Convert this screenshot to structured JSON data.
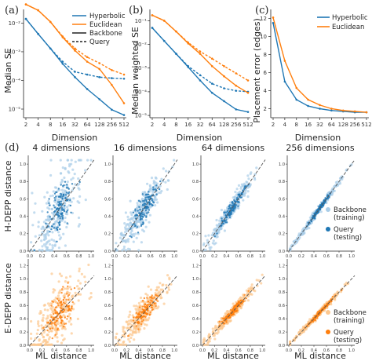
{
  "colors": {
    "hyperbolic": "#1f77b4",
    "euclidean": "#ff7f0e",
    "hyper_light": "#a9cde8",
    "euclid_light": "#fcc78f",
    "axis": "#222222",
    "diag": "#555555"
  },
  "panel_a": {
    "letter": "(a)",
    "ylabel": "Median SE",
    "xlabel": "Dimension",
    "xticks": [
      "2",
      "4",
      "8",
      "16",
      "32",
      "64",
      "128",
      "256",
      "512"
    ],
    "yticks": [
      "10⁻²",
      "10⁻³",
      "10⁻⁴",
      "10⁻⁵"
    ],
    "legend": {
      "hyperbolic": "Hyperbolic",
      "euclidean": "Euclidean",
      "backbone": "Backbone",
      "query": "Query"
    }
  },
  "panel_b": {
    "letter": "(b)",
    "ylabel": "Median weighted SE",
    "xlabel": "Dimension",
    "xticks": [
      "2",
      "4",
      "8",
      "16",
      "32",
      "64",
      "128",
      "256",
      "512"
    ],
    "yticks": [
      "10⁻¹",
      "10⁻²",
      "10⁻³",
      "10⁻⁴",
      "10⁻⁵"
    ]
  },
  "panel_c": {
    "letter": "(c)",
    "ylabel": "Placement error (edges)",
    "xlabel": "Dimension",
    "xticks": [
      "2",
      "4",
      "8",
      "16",
      "32",
      "64",
      "128",
      "256",
      "512"
    ],
    "yticks": [
      "2",
      "4",
      "6",
      "8",
      "10",
      "12"
    ],
    "legend": {
      "hyperbolic": "Hyperbolic",
      "euclidean": "Euclidean"
    }
  },
  "panel_d": {
    "letter": "(d)",
    "col_titles": [
      "4 dimensions",
      "16 dimensions",
      "64 dimensions",
      "256 dimensions"
    ],
    "row_labels": [
      "H-DEPP distance",
      "E-DEPP distance"
    ],
    "xlabel": "ML distance",
    "xticks": [
      "0.0",
      "0.2",
      "0.4",
      "0.6",
      "0.8",
      "1.0"
    ],
    "legend": {
      "backbone": "Backbone",
      "backbone_sub": "(training)",
      "query": "Query",
      "query_sub": "(testing)"
    }
  },
  "chart_data": [
    {
      "type": "line",
      "panel": "a",
      "title": "",
      "xlabel": "Dimension",
      "ylabel": "Median SE",
      "x": [
        2,
        4,
        8,
        16,
        32,
        64,
        128,
        256,
        512
      ],
      "yscale": "log",
      "ylim": [
        5e-06,
        0.03
      ],
      "series": [
        {
          "name": "Hyperbolic Backbone",
          "values": [
            0.014,
            0.0042,
            0.0013,
            0.00038,
            0.00013,
            5e-05,
            2.2e-05,
            9.5e-06,
            6.2e-06
          ]
        },
        {
          "name": "Hyperbolic Query",
          "values": [
            0.014,
            0.0042,
            0.0013,
            0.00045,
            0.0002,
            0.00016,
            0.00013,
            0.00012,
            0.000115
          ]
        },
        {
          "name": "Euclidean Backbone",
          "values": [
            0.045,
            0.028,
            0.011,
            0.0032,
            0.0011,
            0.00045,
            0.00025,
            7e-05,
            1.6e-05
          ]
        },
        {
          "name": "Euclidean Query",
          "values": [
            0.045,
            0.028,
            0.011,
            0.0034,
            0.0013,
            0.00065,
            0.0004,
            0.00023,
            0.00016
          ]
        }
      ]
    },
    {
      "type": "line",
      "panel": "b",
      "title": "",
      "xlabel": "Dimension",
      "ylabel": "Median weighted SE",
      "x": [
        2,
        4,
        8,
        16,
        32,
        64,
        128,
        256,
        512
      ],
      "yscale": "log",
      "ylim": [
        8e-06,
        0.3
      ],
      "series": [
        {
          "name": "Hyperbolic Backbone",
          "values": [
            0.05,
            0.014,
            0.004,
            0.0011,
            0.0003,
            9e-05,
            4e-05,
            1.8e-05,
            1.4e-05
          ]
        },
        {
          "name": "Hyperbolic Query",
          "values": [
            0.05,
            0.014,
            0.004,
            0.0012,
            0.0005,
            0.00022,
            0.00014,
            0.00011,
            0.0001
          ]
        },
        {
          "name": "Euclidean Backbone",
          "values": [
            0.17,
            0.1,
            0.035,
            0.011,
            0.004,
            0.0012,
            0.00045,
            0.00018,
            9e-05
          ]
        },
        {
          "name": "Euclidean Query",
          "values": [
            0.17,
            0.1,
            0.035,
            0.012,
            0.005,
            0.0025,
            0.0012,
            0.0006,
            0.0003
          ]
        }
      ]
    },
    {
      "type": "line",
      "panel": "c",
      "title": "",
      "xlabel": "Dimension",
      "ylabel": "Placement error (edges)",
      "x": [
        2,
        4,
        8,
        16,
        32,
        64,
        128,
        256,
        512
      ],
      "ylim": [
        1,
        13
      ],
      "series": [
        {
          "name": "Hyperbolic",
          "values": [
            11.5,
            5.0,
            3.0,
            2.3,
            2.0,
            1.8,
            1.7,
            1.6,
            1.6
          ]
        },
        {
          "name": "Euclidean",
          "values": [
            12.1,
            7.3,
            4.3,
            3.0,
            2.4,
            2.0,
            1.8,
            1.7,
            1.6
          ]
        }
      ]
    },
    {
      "type": "scatter",
      "panel": "d",
      "xlabel": "ML distance",
      "description_rows": [
        "H-DEPP distance",
        "E-DEPP distance"
      ],
      "columns": [
        "4 dimensions",
        "16 dimensions",
        "64 dimensions",
        "256 dimensions"
      ],
      "xlim": [
        0,
        1.05
      ],
      "noise_by_column": [
        0.18,
        0.11,
        0.05,
        0.02
      ],
      "ylim_rows": [
        [
          0,
          1.1
        ],
        [
          0,
          1.3
        ]
      ],
      "series": [
        {
          "name": "Backbone (training)"
        },
        {
          "name": "Query (testing)"
        }
      ]
    }
  ]
}
